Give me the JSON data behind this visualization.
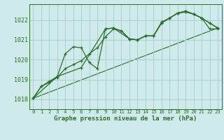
{
  "title": "Graphe pression niveau de la mer (hPa)",
  "background_color": "#ceeaea",
  "grid_color": "#aacece",
  "line_color": "#2d6e2d",
  "x_ticks": [
    0,
    1,
    2,
    3,
    4,
    5,
    6,
    7,
    8,
    9,
    10,
    11,
    12,
    13,
    14,
    15,
    16,
    17,
    18,
    19,
    20,
    21,
    22,
    23
  ],
  "y_ticks": [
    1018,
    1019,
    1020,
    1021,
    1022
  ],
  "ylim": [
    1017.5,
    1022.8
  ],
  "xlim": [
    -0.5,
    23.5
  ],
  "series": [
    {
      "x": [
        0,
        1,
        2,
        3,
        4,
        5,
        6,
        7,
        8,
        9,
        10,
        11,
        12,
        13,
        14,
        15,
        16,
        17,
        18,
        19,
        20,
        21,
        22,
        23
      ],
      "y": [
        1018.05,
        1018.65,
        1018.85,
        1019.1,
        1019.55,
        1019.75,
        1019.95,
        1020.3,
        1020.6,
        1021.15,
        1021.55,
        1021.45,
        1021.05,
        1021.0,
        1021.2,
        1021.2,
        1021.85,
        1022.1,
        1022.35,
        1022.4,
        1022.3,
        1022.1,
        1021.55,
        1021.55
      ],
      "marker": "+"
    },
    {
      "x": [
        0,
        1,
        2,
        3,
        4,
        5,
        6,
        7,
        8,
        9,
        10,
        11,
        12,
        13,
        14,
        15,
        16,
        17,
        18,
        19,
        20,
        21,
        22,
        23
      ],
      "y": [
        1018.05,
        1018.65,
        1018.9,
        1019.15,
        1020.3,
        1020.65,
        1020.6,
        1019.85,
        1019.55,
        1021.55,
        1021.6,
        1021.45,
        1021.05,
        1021.0,
        1021.2,
        1021.2,
        1021.85,
        1022.1,
        1022.35,
        1022.45,
        1022.3,
        1022.1,
        1021.85,
        1021.6
      ],
      "marker": "+"
    },
    {
      "x": [
        0,
        3,
        6,
        9,
        10,
        12,
        13,
        14,
        15,
        16,
        17,
        18,
        19,
        20,
        21,
        22,
        23
      ],
      "y": [
        1018.05,
        1019.15,
        1019.6,
        1021.55,
        1021.6,
        1021.05,
        1021.0,
        1021.2,
        1021.2,
        1021.9,
        1022.1,
        1022.35,
        1022.45,
        1022.3,
        1022.1,
        1021.85,
        1021.6
      ],
      "marker": "+"
    },
    {
      "x": [
        0,
        23
      ],
      "y": [
        1018.05,
        1021.6
      ],
      "marker": null
    }
  ]
}
